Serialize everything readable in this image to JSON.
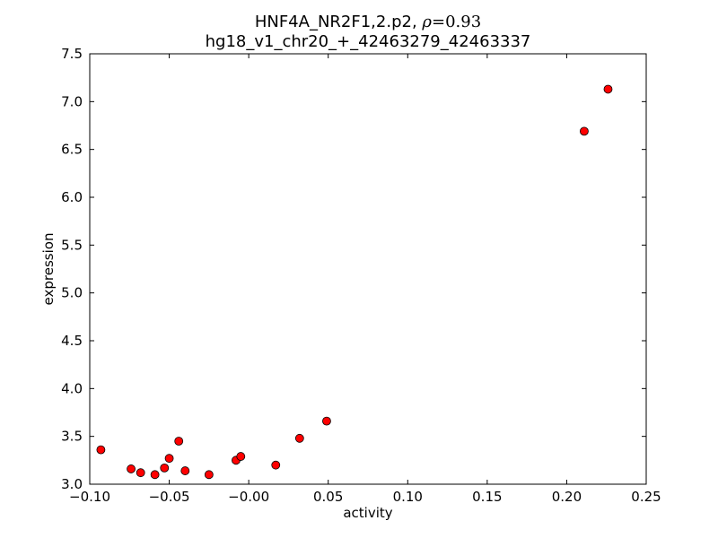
{
  "chart_data": {
    "type": "scatter",
    "title_line1_prefix": "HNF4A_NR2F1,2.p2, ",
    "title_rho_symbol": "ρ",
    "title_rho_value": "=0.93",
    "title_line2": "hg18_v1_chr20_+_42463279_42463337",
    "xlabel": "activity",
    "ylabel": "expression",
    "xlim": [
      -0.1,
      0.25
    ],
    "ylim": [
      3.0,
      7.5
    ],
    "xticks": [
      -0.1,
      -0.05,
      0.0,
      0.05,
      0.1,
      0.15,
      0.2,
      0.25
    ],
    "xtick_labels": [
      "−0.10",
      "−0.05",
      "−0.00",
      "0.05",
      "0.10",
      "0.15",
      "0.20",
      "0.25"
    ],
    "yticks": [
      3.0,
      3.5,
      4.0,
      4.5,
      5.0,
      5.5,
      6.0,
      6.5,
      7.0,
      7.5
    ],
    "ytick_labels": [
      "3.0",
      "3.5",
      "4.0",
      "4.5",
      "5.0",
      "5.5",
      "6.0",
      "6.5",
      "7.0",
      "7.5"
    ],
    "grid": false,
    "marker_color": "#ff0000",
    "marker_edge_color": "#000000",
    "points": [
      {
        "x": -0.093,
        "y": 3.36
      },
      {
        "x": -0.074,
        "y": 3.16
      },
      {
        "x": -0.068,
        "y": 3.12
      },
      {
        "x": -0.059,
        "y": 3.1
      },
      {
        "x": -0.053,
        "y": 3.17
      },
      {
        "x": -0.05,
        "y": 3.27
      },
      {
        "x": -0.044,
        "y": 3.45
      },
      {
        "x": -0.04,
        "y": 3.14
      },
      {
        "x": -0.025,
        "y": 3.1
      },
      {
        "x": -0.008,
        "y": 3.25
      },
      {
        "x": -0.005,
        "y": 3.29
      },
      {
        "x": 0.017,
        "y": 3.2
      },
      {
        "x": 0.032,
        "y": 3.48
      },
      {
        "x": 0.049,
        "y": 3.66
      },
      {
        "x": 0.211,
        "y": 6.69
      },
      {
        "x": 0.226,
        "y": 7.13
      }
    ]
  }
}
